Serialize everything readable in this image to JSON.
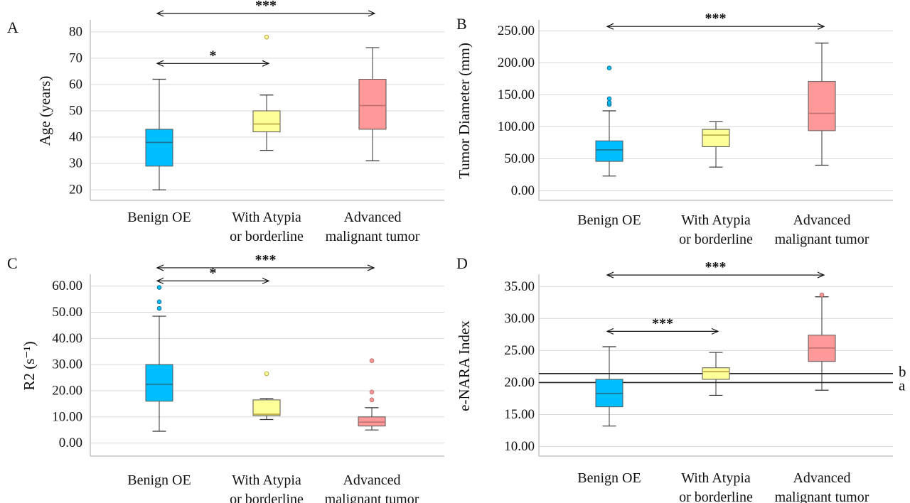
{
  "chart_data": [
    {
      "panel": "A",
      "type": "box",
      "title": "",
      "ylabel": "Age (years)",
      "ylim": [
        16,
        84
      ],
      "yticks": [
        "20",
        "30",
        "40",
        "50",
        "60",
        "70",
        "80"
      ],
      "categories": [
        [
          "Benign OE"
        ],
        [
          "With Atypia",
          "or borderline"
        ],
        [
          "Advanced",
          "malignant tumor"
        ]
      ],
      "colors": [
        "#00bfff",
        "#ffff99",
        "#ff9999"
      ],
      "boxes": [
        {
          "min": 20,
          "q1": 29,
          "median": 38,
          "q3": 43,
          "max": 62,
          "outliers": []
        },
        {
          "min": 35,
          "q1": 42,
          "median": 45,
          "q3": 50,
          "max": 56,
          "outliers": [
            78
          ]
        },
        {
          "min": 31,
          "q1": 43,
          "median": 52,
          "q3": 62,
          "max": 74,
          "outliers": []
        }
      ],
      "significance": [
        {
          "from": 0,
          "to": 2,
          "label": "***",
          "y": 87
        },
        {
          "from": 0,
          "to": 1,
          "label": "*",
          "y": 68
        }
      ],
      "reference_lines": []
    },
    {
      "panel": "B",
      "type": "box",
      "title": "",
      "ylabel": "Tumor Diameter (mm)",
      "ylim": [
        -15,
        265
      ],
      "yticks": [
        "0.00",
        "50.00",
        "100.00",
        "150.00",
        "200.00",
        "250.00"
      ],
      "categories": [
        [
          "Benign OE"
        ],
        [
          "With Atypia",
          "or borderline"
        ],
        [
          "Advanced",
          "malignant tumor"
        ]
      ],
      "colors": [
        "#00bfff",
        "#ffff99",
        "#ff9999"
      ],
      "boxes": [
        {
          "min": 23,
          "q1": 46,
          "median": 64,
          "q3": 78,
          "max": 125,
          "outliers": [
            135,
            138,
            144,
            192
          ]
        },
        {
          "min": 37,
          "q1": 69,
          "median": 87,
          "q3": 96,
          "max": 108,
          "outliers": []
        },
        {
          "min": 40,
          "q1": 94,
          "median": 121,
          "q3": 171,
          "max": 231,
          "outliers": []
        }
      ],
      "significance": [
        {
          "from": 0,
          "to": 2,
          "label": "***",
          "y": 257
        }
      ],
      "reference_lines": []
    },
    {
      "panel": "C",
      "type": "box",
      "title": "",
      "ylabel": "R2 (s⁻¹)",
      "ylim": [
        -5,
        64
      ],
      "yticks": [
        "0.00",
        "10.00",
        "20.00",
        "30.00",
        "40.00",
        "50.00",
        "60.00"
      ],
      "categories": [
        [
          "Benign OE"
        ],
        [
          "With Atypia",
          "or borderline"
        ],
        [
          "Advanced",
          "malignant tumor"
        ]
      ],
      "colors": [
        "#00bfff",
        "#ffff99",
        "#ff9999"
      ],
      "boxes": [
        {
          "min": 4.5,
          "q1": 16,
          "median": 22.5,
          "q3": 30,
          "max": 48.5,
          "outliers": [
            51.5,
            54,
            59.5
          ]
        },
        {
          "min": 9,
          "q1": 10.5,
          "median": 11,
          "q3": 16.5,
          "max": 17,
          "outliers": [
            26.5
          ]
        },
        {
          "min": 5,
          "q1": 6.5,
          "median": 8,
          "q3": 10,
          "max": 13.5,
          "outliers": [
            16.5,
            19.5,
            31.5
          ]
        }
      ],
      "significance": [
        {
          "from": 0,
          "to": 2,
          "label": "***",
          "y": 67
        },
        {
          "from": 0,
          "to": 1,
          "label": "*",
          "y": 62
        }
      ],
      "reference_lines": []
    },
    {
      "panel": "D",
      "type": "box",
      "title": "",
      "ylabel": "e-NARA Index",
      "ylim": [
        8.5,
        36.7
      ],
      "yticks": [
        "10.00",
        "15.00",
        "20.00",
        "25.00",
        "30.00",
        "35.00"
      ],
      "categories": [
        [
          "Benign OE"
        ],
        [
          "With Atypia",
          "or borderline"
        ],
        [
          "Advanced",
          "malignant tumor"
        ]
      ],
      "colors": [
        "#00bfff",
        "#ffff99",
        "#ff9999"
      ],
      "boxes": [
        {
          "min": 13.2,
          "q1": 16.2,
          "median": 18.3,
          "q3": 20.5,
          "max": 25.6,
          "outliers": []
        },
        {
          "min": 18,
          "q1": 20.5,
          "median": 21.7,
          "q3": 22.3,
          "max": 24.7,
          "outliers": []
        },
        {
          "min": 18.8,
          "q1": 23.3,
          "median": 25.4,
          "q3": 27.4,
          "max": 33.4,
          "outliers": [
            33.7
          ]
        }
      ],
      "significance": [
        {
          "from": 0,
          "to": 2,
          "label": "***",
          "y": 36.8
        },
        {
          "from": 0,
          "to": 1,
          "label": "***",
          "y": 28
        }
      ],
      "reference_lines": [
        {
          "label": "b",
          "y": 21.4
        },
        {
          "label": "a",
          "y": 20
        }
      ]
    }
  ]
}
